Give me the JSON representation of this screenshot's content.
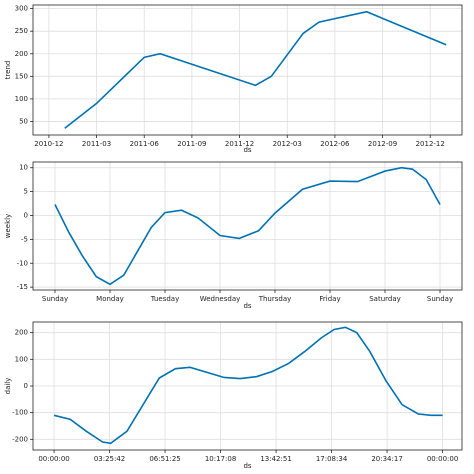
{
  "chart_data": [
    {
      "type": "line",
      "ylabel": "trend",
      "xlabel": "ds",
      "color": "#0072B2",
      "grid": true,
      "x": [
        "2011-01",
        "2011-03",
        "2011-06",
        "2011-07",
        "2012-01",
        "2012-02",
        "2012-04",
        "2012-05",
        "2012-08",
        "2013-01"
      ],
      "values": [
        35,
        90,
        192,
        200,
        130,
        150,
        245,
        270,
        293,
        220
      ],
      "xlim": [
        "2010-11",
        "2013-02"
      ],
      "ylim": [
        20,
        308
      ],
      "xticks": [
        "2010-12",
        "2011-03",
        "2011-06",
        "2011-09",
        "2011-12",
        "2012-03",
        "2012-06",
        "2012-09",
        "2012-12"
      ],
      "yticks": [
        50,
        100,
        150,
        200,
        250,
        300
      ]
    },
    {
      "type": "line",
      "ylabel": "weekly",
      "xlabel": "ds",
      "color": "#0072B2",
      "grid": true,
      "x": [
        0,
        0.25,
        0.5,
        0.75,
        1,
        1.25,
        1.5,
        1.75,
        2,
        2.3,
        2.6,
        3,
        3.35,
        3.7,
        4,
        4.5,
        5,
        5.5,
        6,
        6.3,
        6.5,
        6.75,
        7
      ],
      "values": [
        2.3,
        -3.5,
        -8.5,
        -12.8,
        -14.4,
        -12.5,
        -7.5,
        -2.5,
        0.6,
        1.1,
        -0.5,
        -4.2,
        -4.8,
        -3.2,
        0.5,
        5.5,
        7.2,
        7.1,
        9.3,
        10,
        9.7,
        7.5,
        2.3
      ],
      "xlim": [
        -0.4,
        7.4
      ],
      "ylim": [
        -15.6,
        11.2
      ],
      "xticks": [
        {
          "value": 0,
          "label": "Sunday"
        },
        {
          "value": 1,
          "label": "Monday"
        },
        {
          "value": 2,
          "label": "Tuesday"
        },
        {
          "value": 3,
          "label": "Wednesday"
        },
        {
          "value": 4,
          "label": "Thursday"
        },
        {
          "value": 5,
          "label": "Friday"
        },
        {
          "value": 6,
          "label": "Saturday"
        },
        {
          "value": 7,
          "label": "Sunday"
        }
      ],
      "yticks": [
        -15,
        -10,
        -5,
        0,
        5,
        10
      ]
    },
    {
      "type": "line",
      "ylabel": "daily",
      "xlabel": "ds",
      "color": "#0072B2",
      "grid": true,
      "x": [
        0,
        1,
        2,
        3,
        3.5,
        4.5,
        5.5,
        6.5,
        7.5,
        8.4,
        9.5,
        10.5,
        11.5,
        12.5,
        13.5,
        14.5,
        15.5,
        16.5,
        17.3,
        18,
        18.7,
        19.5,
        20.5,
        21.5,
        22.5,
        23.3,
        24
      ],
      "values": [
        -110,
        -125,
        -170,
        -210,
        -215,
        -170,
        -70,
        30,
        65,
        70,
        50,
        32,
        28,
        35,
        55,
        85,
        130,
        180,
        212,
        220,
        200,
        130,
        20,
        -70,
        -105,
        -110,
        -110
      ],
      "xlim": [
        -1.3,
        25.2
      ],
      "ylim": [
        -240,
        240
      ],
      "xticks": [
        {
          "value": 0,
          "label": "00:00:00"
        },
        {
          "value": 3.4286,
          "label": "03:25:42"
        },
        {
          "value": 6.8571,
          "label": "06:51:25"
        },
        {
          "value": 10.2857,
          "label": "10:17:08"
        },
        {
          "value": 13.7143,
          "label": "13:42:51"
        },
        {
          "value": 17.1429,
          "label": "17:08:34"
        },
        {
          "value": 20.5714,
          "label": "20:34:17"
        },
        {
          "value": 24,
          "label": "00:00:00"
        }
      ],
      "yticks": [
        -200,
        -100,
        0,
        100,
        200
      ]
    }
  ]
}
